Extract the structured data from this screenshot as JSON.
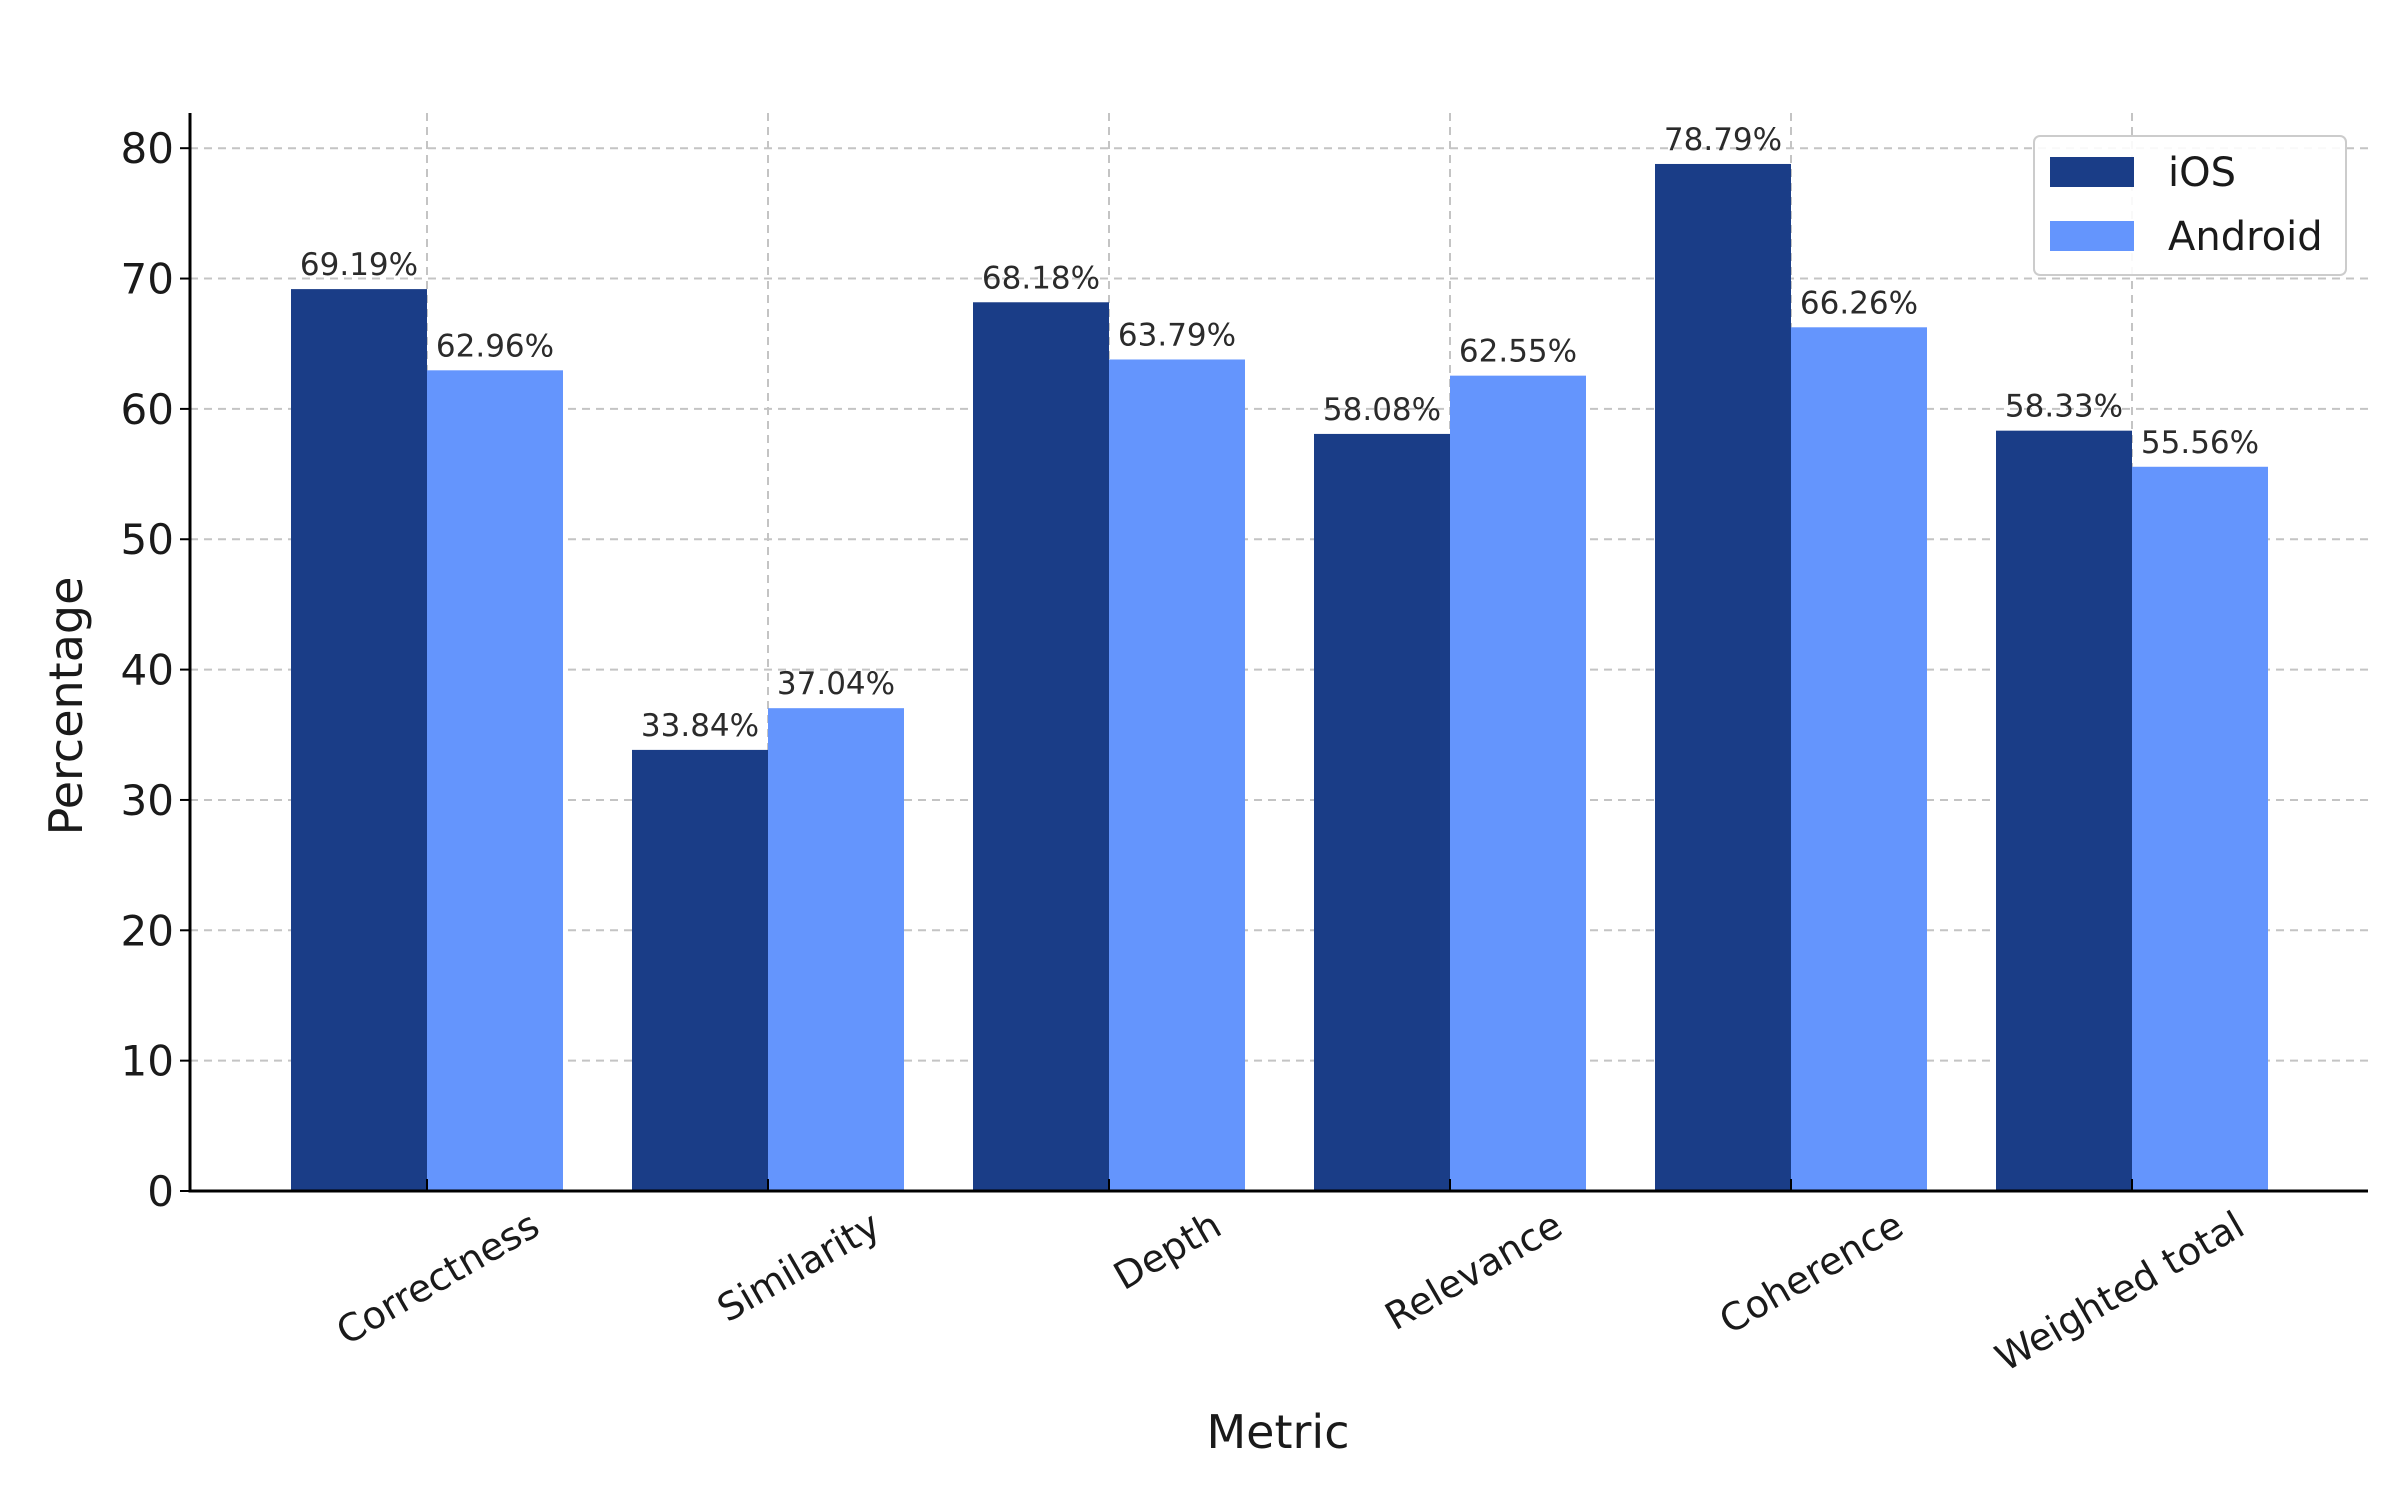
{
  "chart_data": {
    "type": "bar",
    "title": "",
    "xlabel": "Metric",
    "ylabel": "Percentage",
    "categories": [
      "Correctness",
      "Similarity",
      "Depth",
      "Relevance",
      "Coherence",
      "Weighted total"
    ],
    "series": [
      {
        "name": "iOS",
        "color": "#1a3d87",
        "values": [
          69.19,
          33.84,
          68.18,
          58.08,
          78.79,
          58.33
        ],
        "labels": [
          "69.19%",
          "33.84%",
          "68.18%",
          "58.08%",
          "78.79%",
          "58.33%"
        ]
      },
      {
        "name": "Android",
        "color": "#6495fd",
        "values": [
          62.96,
          37.04,
          63.79,
          62.55,
          66.26,
          55.56
        ],
        "labels": [
          "62.96%",
          "37.04%",
          "63.79%",
          "62.55%",
          "66.26%",
          "55.56%"
        ]
      }
    ],
    "y_ticks": [
      0,
      10,
      20,
      30,
      40,
      50,
      60,
      70,
      80
    ],
    "ylim": [
      0,
      82.7
    ],
    "grid": true,
    "legend_position": "top-right"
  }
}
